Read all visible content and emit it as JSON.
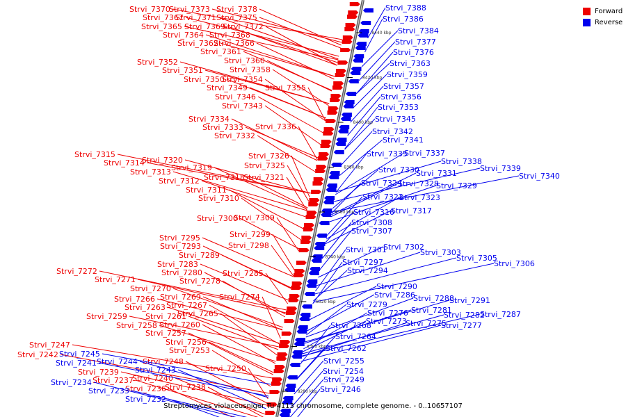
{
  "legend": {
    "forward_label": "Forward",
    "reverse_label": "Reverse",
    "forward_color": "#ee0000",
    "reverse_color": "#0000ee"
  },
  "caption": "Streptomyces violaceusniger Tu 4113 chromosome, complete genome. - 0..10657107",
  "ticks": [
    "8440 kbp",
    "8420 kbp",
    "8400 kbp",
    "8380 kbp",
    "8360 kbp",
    "8340 kbp",
    "8320 kbp",
    "8300 kbp",
    "8280 kbp"
  ],
  "forward_genes": [
    "Strvi_7370",
    "Strvi_7373",
    "Strvi_7378",
    "Strvi_7367",
    "Strvi_7371",
    "Strvi_7375",
    "Strvi_7365",
    "Strvi_7369",
    "Strvi_7372",
    "Strvi_7364",
    "Strvi_7368",
    "Strvi_7362",
    "Strvi_7366",
    "Strvi_7361",
    "Strvi_7352",
    "Strvi_7360",
    "Strvi_7351",
    "Strvi_7358",
    "Strvi_7350",
    "Strvi_7354",
    "Strvi_7349",
    "Strvi_7355",
    "Strvi_7346",
    "Strvi_7343",
    "Strvi_7334",
    "Strvi_7333",
    "Strvi_7336",
    "Strvi_7332",
    "Strvi_7315",
    "Strvi_7326",
    "Strvi_7314",
    "Strvi_7320",
    "Strvi_7325",
    "Strvi_7313",
    "Strvi_7319",
    "Strvi_7318",
    "Strvi_7321",
    "Strvi_7312",
    "Strvi_7311",
    "Strvi_7310",
    "Strvi_7300",
    "Strvi_7309",
    "Strvi_7299",
    "Strvi_7295",
    "Strvi_7293",
    "Strvi_7298",
    "Strvi_7289",
    "Strvi_7283",
    "Strvi_7272",
    "Strvi_7280",
    "Strvi_7285",
    "Strvi_7271",
    "Strvi_7278",
    "Strvi_7270",
    "Strvi_7274",
    "Strvi_7266",
    "Strvi_7269",
    "Strvi_7263",
    "Strvi_7267",
    "Strvi_7265",
    "Strvi_7259",
    "Strvi_7261",
    "Strvi_7258",
    "Strvi_7260",
    "Strvi_7257",
    "Strvi_7256",
    "Strvi_7247",
    "Strvi_7253",
    "Strvi_7242",
    "Strvi_7248",
    "Strvi_7250",
    "Strvi_7239",
    "Strvi_7240",
    "Strvi_7237",
    "Strvi_7236",
    "Strvi_7238"
  ],
  "reverse_genes": [
    "Strvi_7388",
    "Strvi_7386",
    "Strvi_7384",
    "Strvi_7377",
    "Strvi_7376",
    "Strvi_7363",
    "Strvi_7359",
    "Strvi_7357",
    "Strvi_7356",
    "Strvi_7353",
    "Strvi_7345",
    "Strvi_7342",
    "Strvi_7341",
    "Strvi_7335",
    "Strvi_7337",
    "Strvi_7338",
    "Strvi_7339",
    "Strvi_7340",
    "Strvi_7330",
    "Strvi_7331",
    "Strvi_7324",
    "Strvi_7328",
    "Strvi_7329",
    "Strvi_7322",
    "Strvi_7323",
    "Strvi_7316",
    "Strvi_7317",
    "Strvi_7308",
    "Strvi_7307",
    "Strvi_7301",
    "Strvi_7302",
    "Strvi_7303",
    "Strvi_7305",
    "Strvi_7306",
    "Strvi_7297",
    "Strvi_7294",
    "Strvi_7290",
    "Strvi_7286",
    "Strvi_7288",
    "Strvi_7291",
    "Strvi_7279",
    "Strvi_7281",
    "Strvi_7276",
    "Strvi_7282",
    "Strvi_7287",
    "Strvi_7273",
    "Strvi_7275",
    "Strvi_7277",
    "Strvi_7268",
    "Strvi_7264",
    "Strvi_7262",
    "Strvi_7255",
    "Strvi_7254",
    "Strvi_7249",
    "Strvi_7246",
    "Strvi_7245",
    "Strvi_7241",
    "Strvi_7244",
    "Strvi_7243",
    "Strvi_7234",
    "Strvi_7233",
    "Strvi_7232"
  ]
}
